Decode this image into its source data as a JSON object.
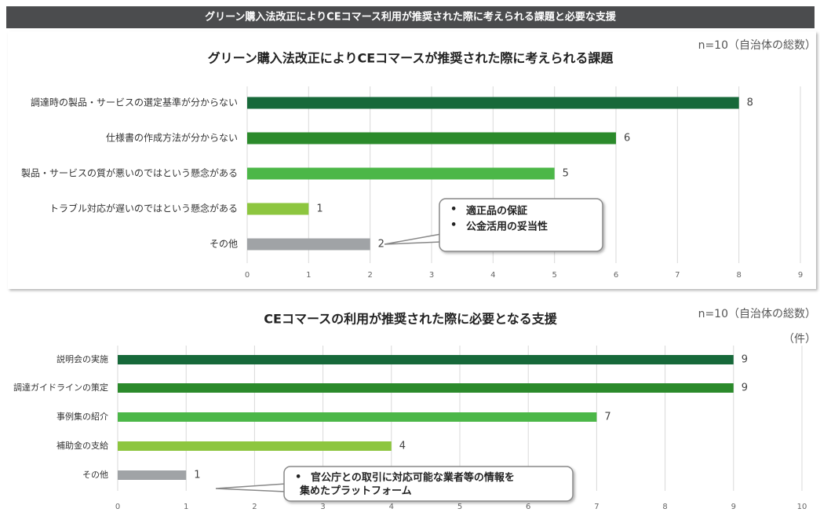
{
  "header": {
    "title": "グリーン購入法改正によりCEコマース利用が推奨された際に考えられる課題と必要な支援"
  },
  "chart_data": [
    {
      "type": "hbar",
      "title": "グリーン購入法改正によりCEコマースが推奨された際に考えられる課題",
      "note": "n=10（自治体の総数）",
      "categories": [
        "調達時の製品・サービスの選定基準が分からない",
        "仕様書の作成方法が分からない",
        "製品・サービスの質が悪いのではという懸念がある",
        "トラブル対応が遅いのではという懸念がある",
        "その他"
      ],
      "values": [
        8,
        6,
        5,
        1,
        2
      ],
      "colors": [
        "#17693a",
        "#2b8a2b",
        "#4cb748",
        "#8dc63f",
        "#a0a3a6"
      ],
      "xlim": [
        0,
        9
      ],
      "xticks": [
        0,
        1,
        2,
        3,
        4,
        5,
        6,
        7,
        8,
        9
      ],
      "grid": true,
      "annotations": [
        "適正品の保証",
        "公金活用の妥当性"
      ]
    },
    {
      "type": "hbar",
      "title": "CEコマースの利用が推奨された際に必要となる支援",
      "note": "n=10（自治体の総数）",
      "unit": "（件）",
      "categories": [
        "説明会の実施",
        "調達ガイドラインの策定",
        "事例集の紹介",
        "補助金の支給",
        "その他"
      ],
      "values": [
        9,
        9,
        7,
        4,
        1
      ],
      "colors": [
        "#17693a",
        "#2b8a2b",
        "#4cb748",
        "#8dc63f",
        "#a0a3a6"
      ],
      "xlim": [
        0,
        10
      ],
      "xticks": [
        0,
        1,
        2,
        3,
        4,
        5,
        6,
        7,
        8,
        9,
        10
      ],
      "grid": true,
      "annotations": [
        "官公庁との取引に対応可能な業者等の情報を集めたプラットフォーム"
      ]
    }
  ]
}
